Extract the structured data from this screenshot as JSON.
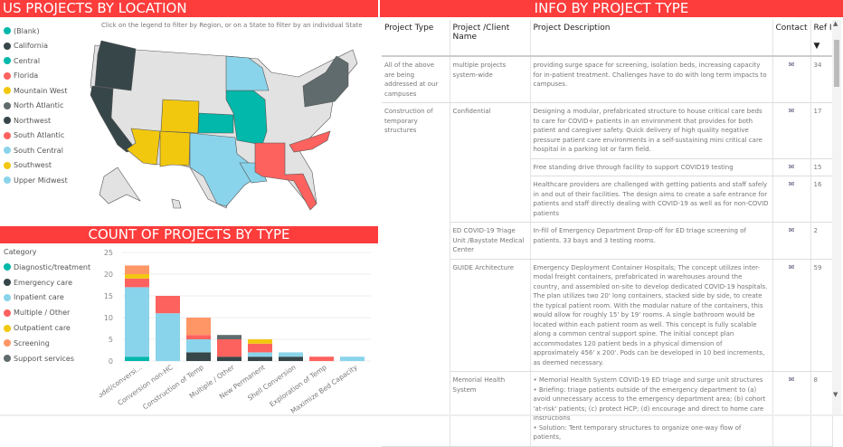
{
  "map_panel": {
    "title": "US PROJECTS BY LOCATION",
    "note": "Click on the legend to filter by Region, or on a State to filter by an individual State",
    "legend": [
      {
        "label": "(Blank)",
        "color": "#01B8AA"
      },
      {
        "label": "California",
        "color": "#374649"
      },
      {
        "label": "Central",
        "color": "#01B8AA"
      },
      {
        "label": "Florida",
        "color": "#FD625E"
      },
      {
        "label": "Mountain West",
        "color": "#F2C80F"
      },
      {
        "label": "North Atlantic",
        "color": "#5F6B6D"
      },
      {
        "label": "Northwest",
        "color": "#374649"
      },
      {
        "label": "South Atlantic",
        "color": "#FD625E"
      },
      {
        "label": "South Central",
        "color": "#8AD4EB"
      },
      {
        "label": "Southwest",
        "color": "#F2C80F"
      },
      {
        "label": "Upper Midwest",
        "color": "#8AD4EB"
      }
    ]
  },
  "chart_panel": {
    "title": "COUNT OF PROJECTS BY TYPE",
    "legend_title": "Category"
  },
  "chart_data": {
    "type": "bar",
    "stacked": true,
    "ylim": [
      0,
      25
    ],
    "yticks": [
      0,
      5,
      10,
      15,
      20,
      25
    ],
    "grid": true,
    "legend_placement": "left",
    "categories": [
      "Remodel/conversi...",
      "Conversion non-HC",
      "Construction of Temp",
      "Multiple / Other",
      "New Permanent",
      "Shell Conversion",
      "Exploration of Temp",
      "Maximize Bed Capacity"
    ],
    "series": [
      {
        "name": "Diagnostic/treatment",
        "color": "#01B8AA",
        "values": [
          1,
          0,
          0,
          0,
          0,
          0,
          0,
          0
        ]
      },
      {
        "name": "Emergency care",
        "color": "#374649",
        "values": [
          0,
          0,
          2,
          1,
          1,
          1,
          0,
          0
        ]
      },
      {
        "name": "Inpatient care",
        "color": "#8AD4EB",
        "values": [
          16,
          11,
          3,
          0,
          1,
          1,
          0,
          1
        ]
      },
      {
        "name": "Multiple / Other",
        "color": "#FD625E",
        "values": [
          2,
          4,
          1,
          4,
          2,
          0,
          1,
          0
        ]
      },
      {
        "name": "Outpatient care",
        "color": "#F2C80F",
        "values": [
          1,
          0,
          0,
          0,
          1,
          0,
          0,
          0
        ]
      },
      {
        "name": "Screening",
        "color": "#FE9666",
        "values": [
          2,
          0,
          4,
          0,
          0,
          0,
          0,
          0
        ]
      },
      {
        "name": "Support services",
        "color": "#5F6B6D",
        "values": [
          0,
          0,
          0,
          1,
          0,
          0,
          0,
          0
        ]
      }
    ]
  },
  "table_panel": {
    "title": "INFO BY PROJECT TYPE",
    "headers": [
      "Project Type",
      "Project /Client Name",
      "Project Description",
      "Contact",
      "Ref ID"
    ],
    "rows": [
      {
        "type": "All of the above are being addressed at our campuses",
        "client": "multiple projects system-wide",
        "desc": "providing surge space for screening, isolation beds, increasing capacity for in-patient treatment. Challenges have to do with long term impacts to campuses.",
        "ref": "34"
      },
      {
        "type": "Construction of temporary structures",
        "client": "Confidential",
        "desc": "Designing a modular, prefabricated structure to house critical care beds to care for COVID+ patients in an environment that provides for both patient and caregiver safety. Quick delivery of high quality negative pressure patient care environments in a self-sustaining mini critical care hospital in a parking lot or farm field.",
        "ref": "17"
      },
      {
        "type": "",
        "client": "",
        "desc": "Free standing drive through facility to support COVID19 testing",
        "ref": "15"
      },
      {
        "type": "",
        "client": "",
        "desc": "Healthcare providers are challenged with getting patients and staff safely in and out of their facilities. The design aims to create a safe entrance for patients and staff directly dealing with COVID-19 as well as for non-COVID patients",
        "ref": "16"
      },
      {
        "type": "",
        "client": "ED COVID-19 Triage Unit /Baystate Medical Center",
        "desc": "In-fill of Emergency Department Drop-off for ED triage screening of patients. 33 bays and 3 testing rooms.",
        "ref": "2"
      },
      {
        "type": "",
        "client": "GUIDE Architecture",
        "desc": "Emergency Deployment Container Hospitals; The concept utilizes inter-modal freight containers, prefabricated in warehouses around the country, and assembled on-site to develop dedicated COVID-19 hospitals. The plan utilizes two 20' long containers, stacked side by side, to create the typical patient room. With the modular nature of the containers, this would allow for roughly 15' by 19' rooms. A single bathroom would be located within each patient room as well. This concept is fully scalable along a common central support spine. The initial concept plan accommodates 120 patient beds in a physical dimension of approximately 456' x 200'. Pods can be developed in 10 bed increments, as deemed necessary.",
        "ref": "59"
      },
      {
        "type": "",
        "client": "Memorial Health System",
        "desc": "• Memorial Health System COVID-19 ED triage and surge unit structures\n• Briefing: triage patients outside of the emergency department to (a) avoid unnecessary access to the emergency department area; (b) cohort 'at-risk' patients; (c) protect HCP; (d) encourage and direct to home care instructions\n• Solution: Tent temporary structures to organize one-way flow of patients,",
        "ref": "8"
      }
    ]
  }
}
